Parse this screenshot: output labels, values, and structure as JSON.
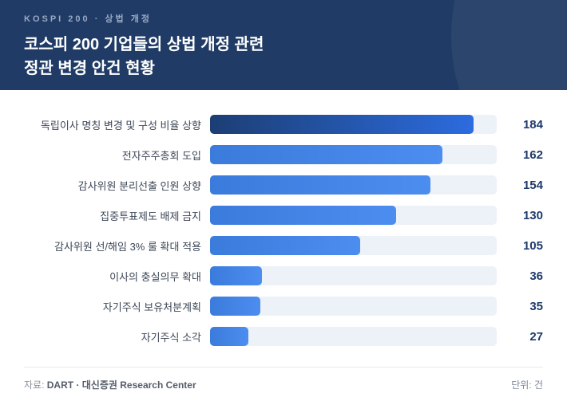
{
  "header": {
    "eyebrow": "KOSPI 200 · 상법 개정",
    "title_line1": "코스피 200 기업들의 상법 개정 관련",
    "title_line2": "정관 변경 안건 현황"
  },
  "chart_data": {
    "type": "bar",
    "orientation": "horizontal",
    "title": "코스피 200 기업들의 상법 개정 관련 정관 변경 안건 현황",
    "categories": [
      "독립이사 명칭 변경 및 구성 비율 상향",
      "전자주주총회 도입",
      "감사위원 분리선출 인원 상향",
      "집중투표제도 배제 금지",
      "감사위원 선/해임 3% 룰 확대 적용",
      "이사의 충실의무 확대",
      "자기주식 보유처분계획",
      "자기주식 소각"
    ],
    "values": [
      184,
      162,
      154,
      130,
      105,
      36,
      35,
      27
    ],
    "xlim": [
      0,
      200
    ],
    "unit": "건",
    "value_labels_shown": true,
    "highlight_index": 0,
    "grid": false,
    "legend": false
  },
  "footer": {
    "source_label": "자료:",
    "source_value": "DART · 대신증권 Research Center",
    "unit_note": "단위: 건"
  },
  "colors": {
    "header_bg": "#203c66",
    "header_eyebrow": "#98a9c4",
    "bar_track": "#edf1f8",
    "bar_highlight_gradient": [
      "#1c3e74",
      "#2c6cdf"
    ],
    "bar_normal_gradient": [
      "#3b7bdb",
      "#4c8df0"
    ],
    "value_text": "#1e3a6b",
    "label_text": "#3d4757"
  }
}
